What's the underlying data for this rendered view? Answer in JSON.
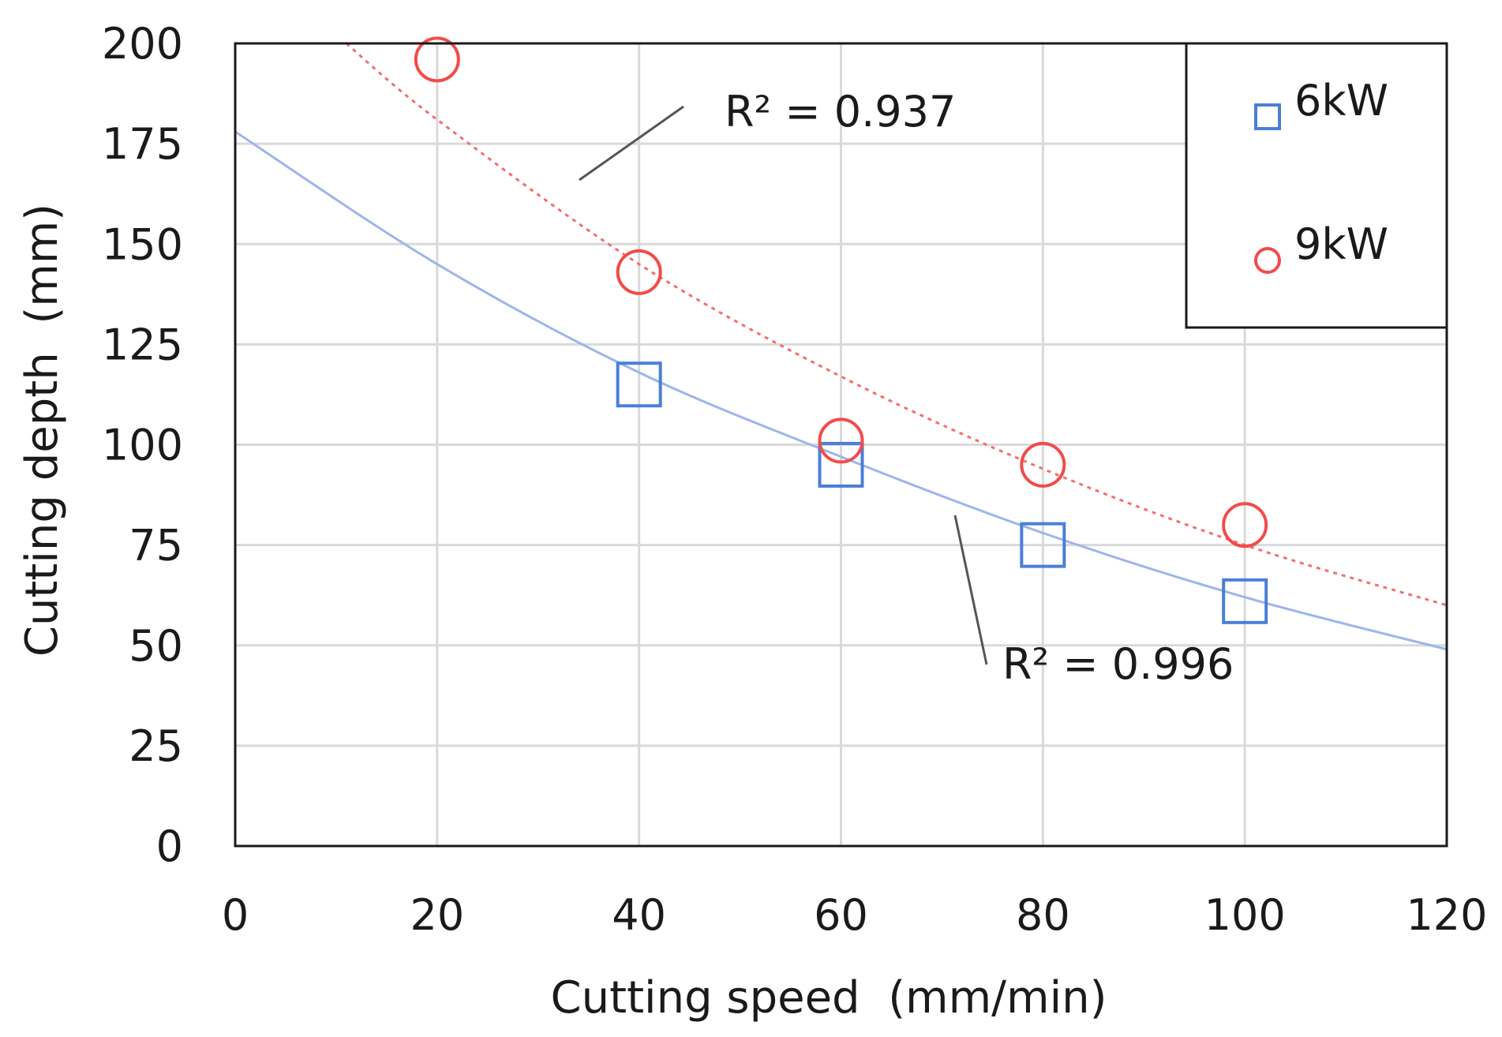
{
  "chart_data": {
    "type": "scatter",
    "title": "",
    "xlabel": "Cutting speed  (mm/min)",
    "ylabel": "Cutting depth  (mm)",
    "xlim": [
      0,
      120
    ],
    "ylim": [
      0,
      200
    ],
    "xticks": [
      0,
      20,
      40,
      60,
      80,
      100,
      120
    ],
    "yticks": [
      0,
      25,
      50,
      75,
      100,
      125,
      150,
      175,
      200
    ],
    "grid": true,
    "legend_position": "top-right",
    "series": [
      {
        "name": "6kW",
        "marker": "square",
        "color": "#4a7fd8",
        "x": [
          40,
          60,
          80,
          100
        ],
        "y": [
          115,
          95,
          75,
          61
        ],
        "trendline": {
          "style": "solid",
          "color": "#9db5ea",
          "x": [
            0,
            20,
            40,
            60,
            80,
            100,
            120
          ],
          "y": [
            178,
            145,
            118,
            97,
            78,
            62,
            49
          ],
          "r2_label": "R² = 0.996"
        }
      },
      {
        "name": "9kW",
        "marker": "circle",
        "color": "#f24b4b",
        "x": [
          20,
          40,
          60,
          80,
          100
        ],
        "y": [
          196,
          143,
          101,
          95,
          80
        ],
        "trendline": {
          "style": "dotted",
          "color": "#f27070",
          "x": [
            11,
            20,
            40,
            60,
            80,
            100,
            120
          ],
          "y": [
            200,
            181,
            145,
            117,
            94,
            75,
            60
          ],
          "r2_label": "R² = 0.937"
        }
      }
    ]
  }
}
